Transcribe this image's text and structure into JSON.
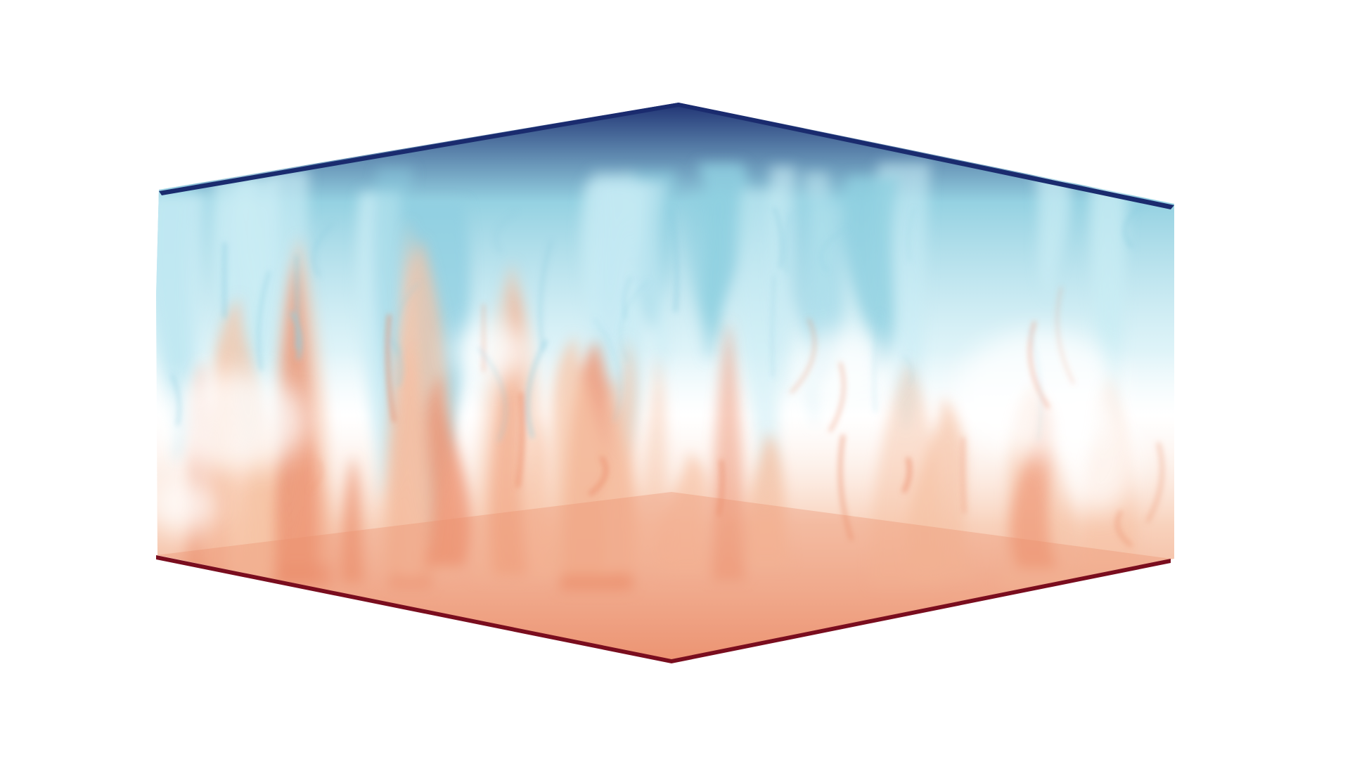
{
  "scene": {
    "render_type": "volume-rendering",
    "background_color": "#ffffff",
    "colors": {
      "cold_dark": "#1a2b6e",
      "cold_mid": "#8fcfe0",
      "cold_light": "#c9ecf4",
      "neutral": "#ffffff",
      "hot_light": "#f6c3a6",
      "hot_mid": "#ec8f6d",
      "hot_dark": "#7a0d1e"
    }
  }
}
